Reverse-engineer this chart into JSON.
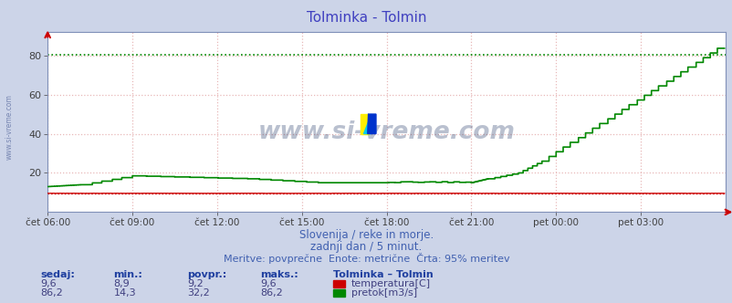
{
  "title": "Tolminka - Tolmin",
  "title_color": "#4040c0",
  "bg_color": "#ccd4e8",
  "plot_bg_color": "#ffffff",
  "xlabel_ticks": [
    "čet 06:00",
    "čet 09:00",
    "čet 12:00",
    "čet 15:00",
    "čet 18:00",
    "čet 21:00",
    "pet 00:00",
    "pet 03:00"
  ],
  "tick_positions": [
    0,
    72,
    144,
    216,
    288,
    360,
    432,
    504
  ],
  "total_points": 576,
  "ylim_min": 0,
  "ylim_max": 92,
  "yticks": [
    20,
    40,
    60,
    80
  ],
  "temp_color": "#cc0000",
  "flow_color": "#008800",
  "flow_95_color": "#008800",
  "temp_95_color": "#cc0000",
  "grid_h_color": "#e8b8b8",
  "grid_v_color": "#e8b8b8",
  "watermark_text": "www.si-vreme.com",
  "watermark_color": "#1a3060",
  "watermark_alpha": 0.3,
  "subtitle1": "Slovenija / reke in morje.",
  "subtitle2": "zadnji dan / 5 minut.",
  "subtitle3": "Meritve: povprečne  Enote: metrične  Črta: 95% meritev",
  "subtitle_color": "#4060b0",
  "legend_title": "Tolminka – Tolmin",
  "col_headers": [
    "sedaj:",
    "min.:",
    "povpr.:",
    "maks.:"
  ],
  "col_values_temp": [
    "9,6",
    "8,9",
    "9,2",
    "9,6"
  ],
  "col_values_flow": [
    "86,2",
    "14,3",
    "32,2",
    "86,2"
  ],
  "label_temp": "temperatura[C]",
  "label_flow": "pretok[m3/s]",
  "flow_95pct": 80.5,
  "temp_95pct": 9.6
}
